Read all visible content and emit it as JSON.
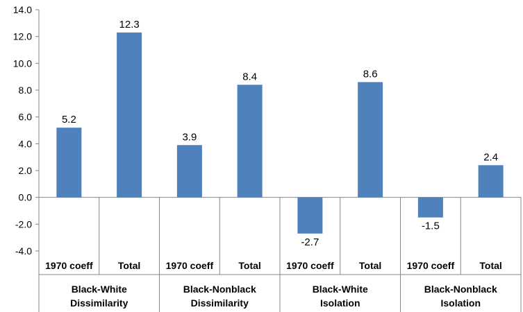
{
  "chart_data": {
    "type": "bar",
    "title": "",
    "xlabel": "",
    "ylabel": "",
    "ylim": [
      -4,
      14
    ],
    "yticks": [
      "14.0",
      "12.0",
      "10.0",
      "8.0",
      "6.0",
      "4.0",
      "2.0",
      "0.0",
      "-2.0",
      "-4.0"
    ],
    "ytick_values": [
      14,
      12,
      10,
      8,
      6,
      4,
      2,
      0,
      -2,
      -4
    ],
    "grid": false,
    "legend": "none",
    "bar_color": "#4F81BD",
    "categories": [
      "1970 coeff",
      "Total",
      "1970 coeff",
      "Total",
      "1970 coeff",
      "Total",
      "1970 coeff",
      "Total"
    ],
    "values": [
      5.2,
      12.3,
      3.9,
      8.4,
      -2.7,
      8.6,
      -1.5,
      2.4
    ],
    "value_labels": [
      "5.2",
      "12.3",
      "3.9",
      "8.4",
      "-2.7",
      "8.6",
      "-1.5",
      "2.4"
    ],
    "groups": [
      {
        "line1": "Black-White",
        "line2": "Dissimilarity"
      },
      {
        "line1": "Black-Nonblack",
        "line2": "Dissimilarity"
      },
      {
        "line1": "Black-White",
        "line2": "Isolation"
      },
      {
        "line1": "Black-Nonblack",
        "line2": "Isolation"
      }
    ]
  }
}
